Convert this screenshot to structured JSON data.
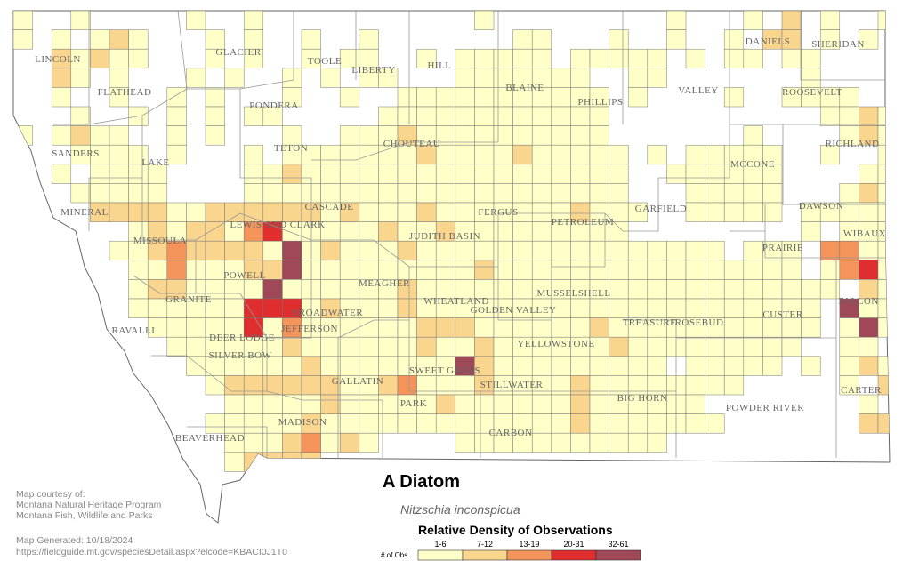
{
  "map": {
    "title": "A Diatom",
    "subtitle": "Nitzschia inconspicua",
    "legend": {
      "title": "Relative Density of Observations",
      "axis_label": "# of Obs.",
      "classes": [
        "1-6",
        "7-12",
        "13-19",
        "20-31",
        "32-61"
      ]
    },
    "credits": [
      "Map courtesy of:",
      "Montana Natural Heritage Program",
      "Montana Fish, Wildlife and Parks"
    ],
    "generated": "Map Generated: 10/18/2024",
    "url": "https://fieldguide.mt.gov/speciesDetail.aspx?elcode=KBACI0J1T0",
    "counties": [
      "LINCOLN",
      "FLATHEAD",
      "GLACIER",
      "TOOLE",
      "LIBERTY",
      "HILL",
      "BLAINE",
      "PHILLIPS",
      "VALLEY",
      "DANIELS",
      "SHERIDAN",
      "ROOSEVELT",
      "PONDERA",
      "TETON",
      "SANDERS",
      "LAKE",
      "CHOUTEAU",
      "RICHLAND",
      "MCCONE",
      "MINERAL",
      "CASCADE",
      "FERGUS",
      "PETROLEUM",
      "GARFIELD",
      "DAWSON",
      "WIBAUX",
      "MISSOULA",
      "LEWIS AND CLARK",
      "JUDITH BASIN",
      "PRAIRIE",
      "POWELL",
      "MEAGHER",
      "WHEATLAND",
      "GOLDEN VALLEY",
      "MUSSELSHELL",
      "GRANITE",
      "BROADWATER",
      "FALLON",
      "CUSTER",
      "RAVALLI",
      "DEER LODGE",
      "JEFFERSON",
      "TREASURE",
      "ROSEBUD",
      "SILVER BOW",
      "YELLOWSTONE",
      "SWEET GRASS",
      "GALLATIN",
      "STILLWATER",
      "PARK",
      "BIG HORN",
      "POWDER RIVER",
      "CARTER",
      "MADISON",
      "BEAVERHEAD",
      "CARBON"
    ]
  }
}
